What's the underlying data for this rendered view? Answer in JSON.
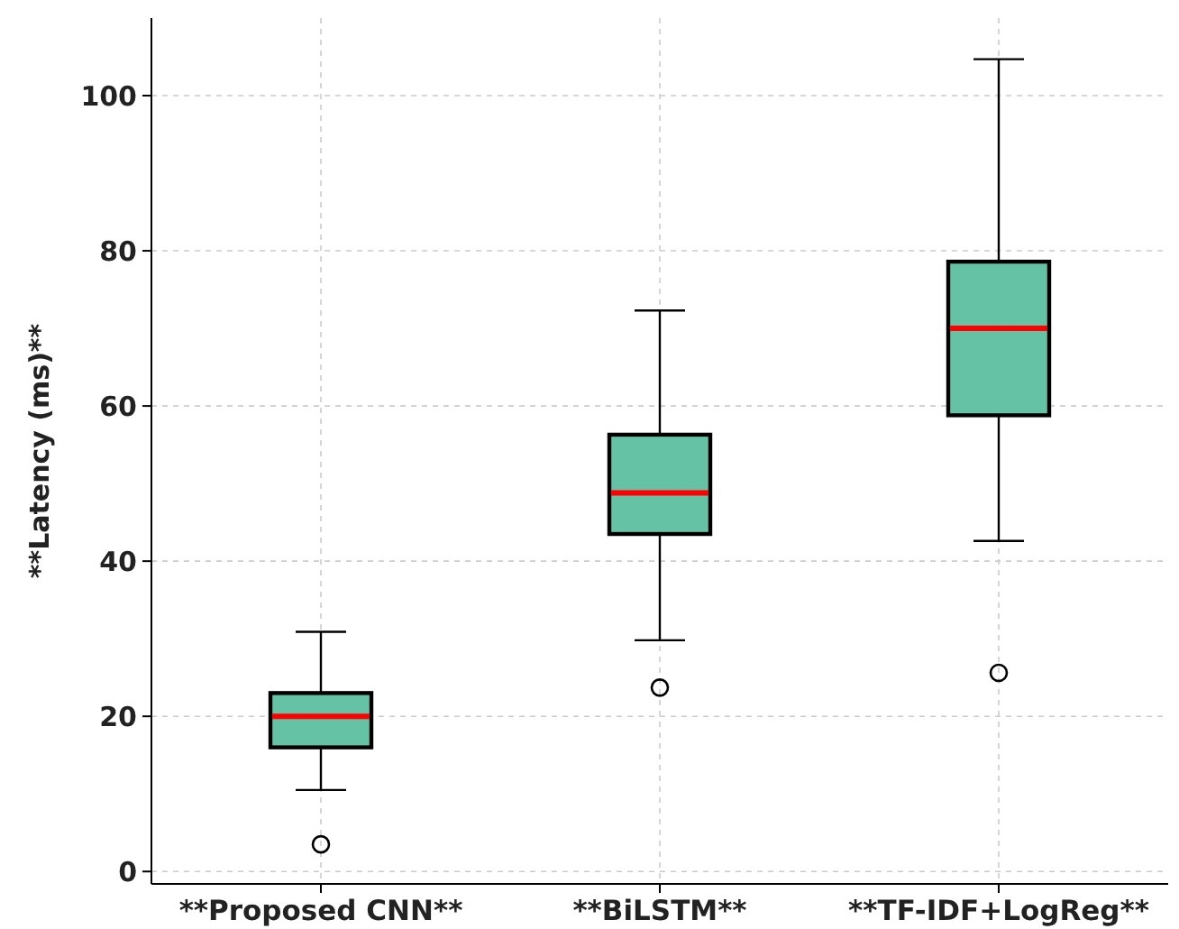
{
  "chart_data": {
    "type": "box",
    "ylabel": "**Latency (ms)**",
    "categories": [
      "**Proposed CNN**",
      "**BiLSTM**",
      "**TF-IDF+LogReg**"
    ],
    "color": "#66c2a5",
    "ylim": [
      -1.6,
      110
    ],
    "yticks": [
      0,
      20,
      40,
      60,
      80,
      100
    ],
    "grid": true,
    "boxes": [
      {
        "low": 10.5,
        "q1": 16,
        "median": 20,
        "q3": 23,
        "high": 30.9,
        "outliers": [
          3.5
        ]
      },
      {
        "low": 29.8,
        "q1": 43.5,
        "median": 48.8,
        "q3": 56.3,
        "high": 72.3,
        "outliers": [
          23.7
        ]
      },
      {
        "low": 42.6,
        "q1": 58.8,
        "median": 70,
        "q3": 78.6,
        "high": 104.7,
        "outliers": [
          25.6
        ]
      }
    ]
  }
}
